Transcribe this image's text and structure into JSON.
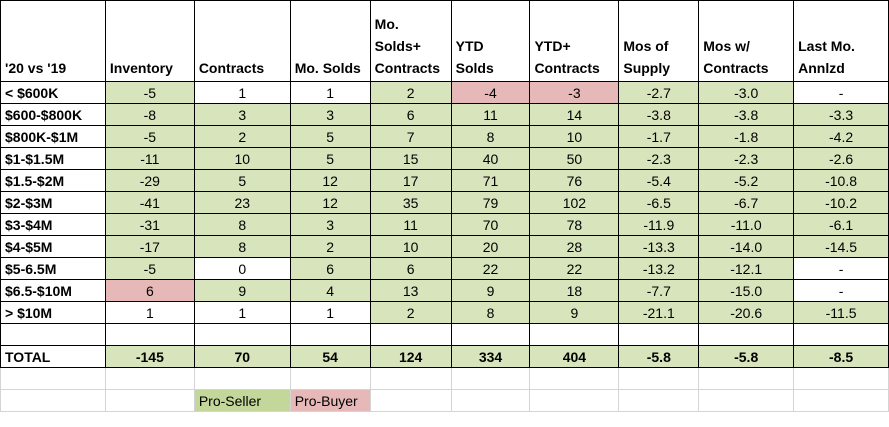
{
  "headers": [
    "'20 vs '19",
    "Inventory",
    "Contracts",
    "Mo. Solds",
    "Mo. Solds+ Contracts",
    "YTD Solds",
    "YTD+ Contracts",
    "Mos of Supply",
    "Mos w/ Contracts",
    "Last Mo. Annlzd"
  ],
  "rows": [
    {
      "label": "< $600K",
      "values": [
        "-5",
        "1",
        "1",
        "2",
        "-4",
        "-3",
        "-2.7",
        "-3.0",
        "-"
      ],
      "shading": [
        "green",
        "white",
        "white",
        "green",
        "pink",
        "pink",
        "green",
        "green",
        "white"
      ]
    },
    {
      "label": "$600-$800K",
      "values": [
        "-8",
        "3",
        "3",
        "6",
        "11",
        "14",
        "-3.8",
        "-3.8",
        "-3.3"
      ],
      "shading": [
        "green",
        "green",
        "green",
        "green",
        "green",
        "green",
        "green",
        "green",
        "green"
      ]
    },
    {
      "label": "$800K-$1M",
      "values": [
        "-5",
        "2",
        "5",
        "7",
        "8",
        "10",
        "-1.7",
        "-1.8",
        "-4.2"
      ],
      "shading": [
        "green",
        "green",
        "green",
        "green",
        "green",
        "green",
        "green",
        "green",
        "green"
      ]
    },
    {
      "label": "$1-$1.5M",
      "values": [
        "-11",
        "10",
        "5",
        "15",
        "40",
        "50",
        "-2.3",
        "-2.3",
        "-2.6"
      ],
      "shading": [
        "green",
        "green",
        "green",
        "green",
        "green",
        "green",
        "green",
        "green",
        "green"
      ]
    },
    {
      "label": "$1.5-$2M",
      "values": [
        "-29",
        "5",
        "12",
        "17",
        "71",
        "76",
        "-5.4",
        "-5.2",
        "-10.8"
      ],
      "shading": [
        "green",
        "green",
        "green",
        "green",
        "green",
        "green",
        "green",
        "green",
        "green"
      ]
    },
    {
      "label": "$2-$3M",
      "values": [
        "-41",
        "23",
        "12",
        "35",
        "79",
        "102",
        "-6.5",
        "-6.7",
        "-10.2"
      ],
      "shading": [
        "green",
        "green",
        "green",
        "green",
        "green",
        "green",
        "green",
        "green",
        "green"
      ]
    },
    {
      "label": "$3-$4M",
      "values": [
        "-31",
        "8",
        "3",
        "11",
        "70",
        "78",
        "-11.9",
        "-11.0",
        "-6.1"
      ],
      "shading": [
        "green",
        "green",
        "green",
        "green",
        "green",
        "green",
        "green",
        "green",
        "green"
      ]
    },
    {
      "label": "$4-$5M",
      "values": [
        "-17",
        "8",
        "2",
        "10",
        "20",
        "28",
        "-13.3",
        "-14.0",
        "-14.5"
      ],
      "shading": [
        "green",
        "green",
        "green",
        "green",
        "green",
        "green",
        "green",
        "green",
        "green"
      ]
    },
    {
      "label": "$5-6.5M",
      "values": [
        "-5",
        "0",
        "6",
        "6",
        "22",
        "22",
        "-13.2",
        "-12.1",
        "-"
      ],
      "shading": [
        "green",
        "white",
        "green",
        "green",
        "green",
        "green",
        "green",
        "green",
        "white"
      ]
    },
    {
      "label": "$6.5-$10M",
      "values": [
        "6",
        "9",
        "4",
        "13",
        "9",
        "18",
        "-7.7",
        "-15.0",
        "-"
      ],
      "shading": [
        "pink",
        "green",
        "green",
        "green",
        "green",
        "green",
        "green",
        "green",
        "white"
      ]
    },
    {
      "label": "> $10M",
      "values": [
        "1",
        "1",
        "1",
        "2",
        "8",
        "9",
        "-21.1",
        "-20.6",
        "-11.5"
      ],
      "shading": [
        "white",
        "white",
        "white",
        "green",
        "green",
        "green",
        "green",
        "green",
        "green"
      ]
    }
  ],
  "total": {
    "label": "TOTAL",
    "values": [
      "-145",
      "70",
      "54",
      "124",
      "334",
      "404",
      "-5.8",
      "-5.8",
      "-8.5"
    ]
  },
  "legend": {
    "pro_seller": "Pro-Seller",
    "pro_buyer": "Pro-Buyer"
  },
  "colors": {
    "green": "#d8e4bc",
    "pink": "#e6b8b7",
    "legend_green": "#c4d79b"
  }
}
